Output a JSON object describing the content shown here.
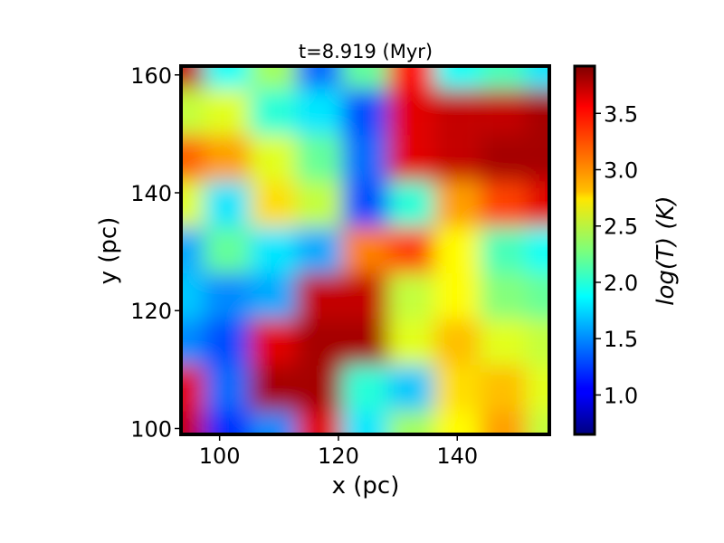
{
  "chart_data": {
    "type": "heatmap",
    "title": "t=8.919 (Myr)",
    "xlabel": "x (pc)",
    "ylabel": "y (pc)",
    "xlim": [
      93.5,
      155.5
    ],
    "ylim": [
      99,
      161.5
    ],
    "xticks": [
      100,
      120,
      140
    ],
    "yticks": [
      100,
      120,
      140,
      160
    ],
    "grid": false,
    "colormap": "jet",
    "colorbar": {
      "label": "log(T) (K)",
      "range": [
        0.65,
        3.92
      ],
      "ticks": [
        1.0,
        1.5,
        2.0,
        2.5,
        3.0,
        3.5
      ],
      "tick_labels": [
        "1.0",
        "1.5",
        "2.0",
        "2.5",
        "3.0",
        "3.5"
      ]
    },
    "field_grid": {
      "x": [
        93.5,
        101.25,
        109.0,
        116.75,
        124.5,
        132.25,
        140.0,
        147.75,
        155.5
      ],
      "y": [
        161.5,
        153.69,
        145.88,
        138.06,
        130.25,
        122.44,
        114.63,
        106.81,
        99.0
      ],
      "values": [
        [
          3.7,
          1.9,
          2.4,
          1.4,
          2.2,
          3.5,
          1.9,
          2.1,
          1.8
        ],
        [
          2.5,
          2.6,
          2.0,
          1.8,
          1.3,
          3.6,
          3.7,
          3.7,
          3.8
        ],
        [
          3.2,
          3.0,
          2.6,
          2.2,
          1.4,
          3.6,
          3.7,
          3.8,
          3.8
        ],
        [
          2.6,
          1.8,
          2.8,
          2.5,
          1.3,
          2.0,
          3.0,
          3.3,
          3.6
        ],
        [
          1.6,
          2.2,
          1.8,
          1.6,
          3.1,
          3.3,
          2.7,
          2.1,
          1.9
        ],
        [
          1.7,
          1.5,
          1.6,
          3.7,
          3.7,
          2.5,
          2.7,
          2.3,
          2.2
        ],
        [
          1.5,
          1.3,
          3.6,
          3.8,
          3.8,
          2.6,
          2.9,
          2.6,
          2.5
        ],
        [
          3.6,
          1.4,
          3.8,
          3.8,
          2.0,
          1.7,
          2.8,
          2.9,
          2.6
        ],
        [
          3.7,
          1.2,
          1.5,
          3.6,
          1.8,
          2.4,
          2.7,
          3.0,
          2.5
        ]
      ]
    }
  }
}
